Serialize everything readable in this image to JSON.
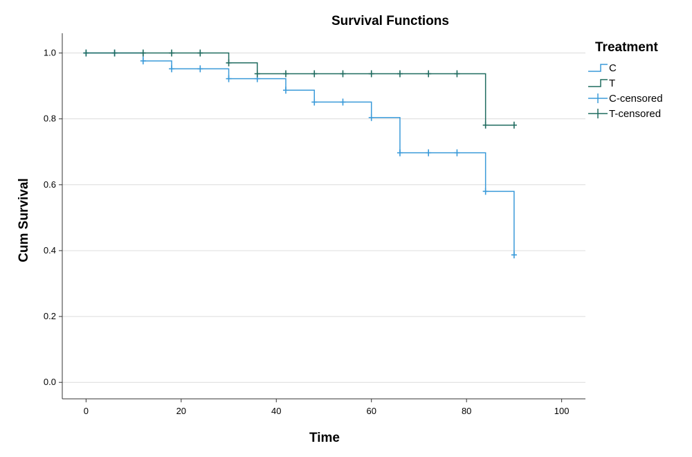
{
  "chart_data": {
    "type": "line",
    "title": "Survival Functions",
    "xlabel": "Time",
    "ylabel": "Cum Survival",
    "xlim": [
      -5,
      105
    ],
    "ylim": [
      -0.05,
      1.06
    ],
    "x_ticks": [
      0,
      20,
      40,
      60,
      80,
      100
    ],
    "y_ticks": [
      0.0,
      0.2,
      0.4,
      0.6,
      0.8,
      1.0
    ],
    "x_tick_labels": [
      "0",
      "20",
      "40",
      "60",
      "80",
      "100"
    ],
    "y_tick_labels": [
      "0.0",
      "0.2",
      "0.4",
      "0.6",
      "0.8",
      "1.0"
    ],
    "grid": "horizontal",
    "legend": {
      "title": "Treatment",
      "placement": "right",
      "entries": [
        "C",
        "T",
        "C-censored",
        "T-censored"
      ]
    },
    "series": [
      {
        "name": "C",
        "color": "#3a9ad9",
        "step_x": [
          0,
          12,
          18,
          30,
          42,
          48,
          60,
          66,
          84,
          90
        ],
        "step_y": [
          1.0,
          0.976,
          0.952,
          0.922,
          0.887,
          0.851,
          0.804,
          0.697,
          0.58,
          0.387
        ],
        "end_x": 90,
        "censored_x": [
          0,
          6,
          12,
          18,
          24,
          30,
          36,
          42,
          48,
          54,
          60,
          66,
          72,
          78,
          84,
          90
        ],
        "censored_y": [
          1.0,
          1.0,
          0.976,
          0.952,
          0.952,
          0.922,
          0.922,
          0.887,
          0.851,
          0.851,
          0.804,
          0.697,
          0.697,
          0.697,
          0.58,
          0.387
        ]
      },
      {
        "name": "T",
        "color": "#1f6b5f",
        "step_x": [
          0,
          30,
          36,
          84
        ],
        "step_y": [
          1.0,
          0.97,
          0.937,
          0.781
        ],
        "end_x": 90,
        "censored_x": [
          0,
          6,
          12,
          18,
          24,
          30,
          36,
          42,
          48,
          54,
          60,
          66,
          72,
          78,
          84,
          90
        ],
        "censored_y": [
          1.0,
          1.0,
          1.0,
          1.0,
          1.0,
          0.97,
          0.937,
          0.937,
          0.937,
          0.937,
          0.937,
          0.937,
          0.937,
          0.937,
          0.781,
          0.781
        ]
      }
    ]
  }
}
